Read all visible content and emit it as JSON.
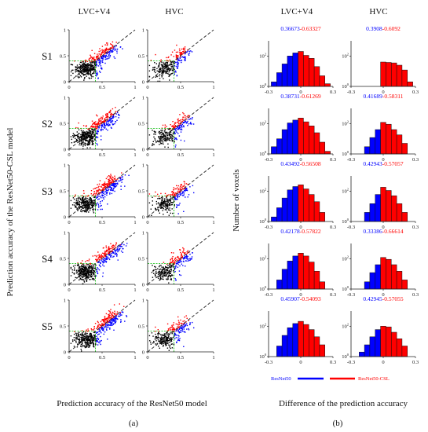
{
  "panel_a": {
    "columns": [
      "LVC+V4",
      "HVC"
    ],
    "rows": [
      "S1",
      "S2",
      "S3",
      "S4",
      "S5"
    ],
    "ylabel": "Prediction accuracy of the ResNet50-CSL model",
    "xlabel": "Prediction accuracy of the ResNet50 model",
    "tag": "(a)",
    "x_ticks": [
      "0",
      "0.5",
      "1"
    ],
    "y_ticks": [
      "0",
      "0.5",
      "1"
    ],
    "colors": {
      "better_csl": "#ff0000",
      "better_resnet": "#0000ff",
      "low": "#000000",
      "threshold": "#00bb00",
      "diagonal": "#333333"
    }
  },
  "panel_b": {
    "columns": [
      "LVC+V4",
      "HVC"
    ],
    "ylabel": "Number of voxels",
    "xlabel": "Difference of the prediction accuracy",
    "tag": "(b)",
    "x_ticks": [
      "-0.3",
      "0",
      "0.3"
    ],
    "legend": {
      "left": "ResNet50",
      "right": "ResNet50-CSL",
      "left_color": "#0000ff",
      "right_color": "#ff0000"
    },
    "annotations": [
      {
        "blue": "0.36673",
        "red": "0.63327"
      },
      {
        "blue": "0.3908",
        "red": "0.6092"
      },
      {
        "blue": "0.38731",
        "red": "0.61269"
      },
      {
        "blue": "0.41689",
        "red": "0.58311"
      },
      {
        "blue": "0.43492",
        "red": "0.56508"
      },
      {
        "blue": "0.42943",
        "red": "0.57057"
      },
      {
        "blue": "0.42178",
        "red": "0.57822"
      },
      {
        "blue": "0.33386",
        "red": "0.66614"
      },
      {
        "blue": "0.45907",
        "red": "0.54093"
      },
      {
        "blue": "0.42945",
        "red": "0.57055"
      }
    ]
  },
  "chart_data": [
    {
      "type": "scatter",
      "panel": "(a)",
      "xlim": [
        0,
        1
      ],
      "ylim": [
        0,
        1
      ],
      "threshold": 0.4,
      "note": "scatter of per-voxel accuracies, 10 subplots (5 subjects x 2 regions), dashed diagonal y=x"
    },
    {
      "type": "bar",
      "panel": "(b)",
      "xlim": [
        -0.3,
        0.3
      ],
      "yscale": "log",
      "categories": [
        -0.25,
        -0.2,
        -0.15,
        -0.1,
        -0.05,
        0,
        0.05,
        0.1,
        0.15,
        0.2,
        0.25
      ],
      "series": [
        {
          "values": [
            2,
            8,
            30,
            100,
            160,
            200,
            110,
            70,
            20,
            5,
            1.5
          ]
        },
        {
          "values": [
            0,
            0,
            0,
            0,
            0,
            40,
            38,
            35,
            25,
            12,
            2
          ]
        },
        {
          "values": [
            3,
            10,
            40,
            110,
            170,
            230,
            130,
            70,
            25,
            6,
            1.5
          ]
        },
        {
          "values": [
            0,
            0,
            3,
            12,
            40,
            120,
            90,
            40,
            18,
            5,
            0
          ]
        },
        {
          "values": [
            2,
            8,
            35,
            120,
            200,
            260,
            140,
            60,
            20,
            4,
            0
          ]
        },
        {
          "values": [
            0,
            0,
            4,
            15,
            60,
            180,
            110,
            50,
            15,
            4,
            0
          ]
        },
        {
          "values": [
            0,
            4,
            20,
            70,
            150,
            230,
            150,
            60,
            15,
            3,
            0
          ]
        },
        {
          "values": [
            0,
            0,
            3,
            12,
            40,
            120,
            90,
            40,
            15,
            4,
            0
          ]
        },
        {
          "values": [
            0,
            5,
            25,
            80,
            150,
            210,
            130,
            60,
            20,
            6,
            0
          ]
        },
        {
          "values": [
            0,
            2,
            6,
            20,
            60,
            100,
            90,
            40,
            15,
            5,
            0
          ]
        }
      ],
      "ylim": [
        1,
        1000
      ]
    }
  ]
}
